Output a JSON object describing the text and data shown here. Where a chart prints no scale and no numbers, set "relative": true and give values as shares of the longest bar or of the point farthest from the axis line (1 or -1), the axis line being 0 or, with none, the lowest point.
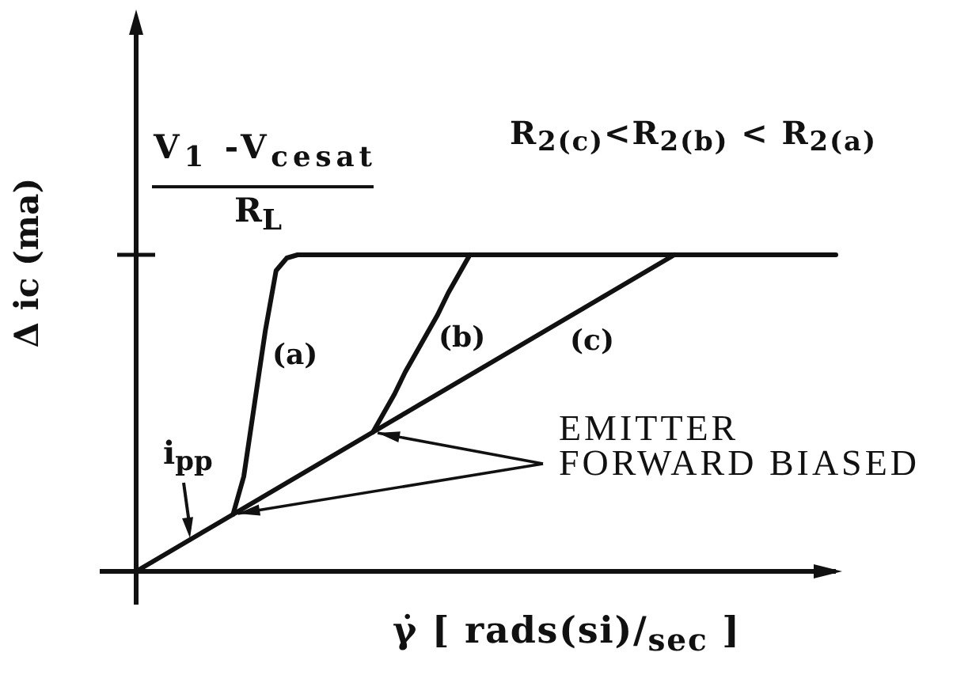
{
  "chart_data": {
    "type": "line",
    "relative": true,
    "xlabel": "γ̇ [ rads(si)/$_{sec}$ ]",
    "ylabel": "Δ ic (ma)",
    "categories": [
      null,
      null,
      null,
      null,
      null,
      null,
      null,
      null,
      null,
      null,
      null,
      null,
      null,
      null,
      null,
      null,
      null,
      null,
      null,
      null,
      null,
      null,
      null,
      null,
      null,
      null,
      null,
      null,
      null,
      null,
      null,
      null,
      null,
      null,
      null,
      null,
      null,
      null,
      null,
      null,
      null,
      null,
      null,
      null,
      null,
      null,
      null,
      null,
      null,
      null,
      null,
      null,
      null,
      null,
      null,
      null,
      null,
      null,
      null,
      null,
      null,
      null,
      null,
      null,
      null,
      null
    ],
    "series": [
      {
        "name": "(a)",
        "color": "#111111",
        "values": [
          null,
          null,
          null,
          null,
          null,
          null,
          null,
          null,
          null,
          0.18,
          0.3,
          0.53,
          0.76,
          0.95,
          0.99,
          1,
          1,
          1,
          1,
          1,
          1,
          1,
          1,
          1,
          1,
          1,
          1,
          1,
          1,
          1,
          1,
          1,
          1,
          1,
          1,
          1,
          1,
          1,
          1,
          1,
          1,
          1,
          1,
          1,
          1,
          1,
          1,
          1,
          1,
          1,
          1,
          1,
          1,
          1,
          1,
          1,
          1,
          1,
          1,
          1,
          1,
          1,
          1,
          1,
          1,
          1
        ]
      },
      {
        "name": "(b)",
        "color": "#111111",
        "values": [
          null,
          null,
          null,
          null,
          null,
          null,
          null,
          null,
          null,
          null,
          null,
          null,
          null,
          null,
          null,
          null,
          null,
          null,
          null,
          null,
          null,
          null,
          0.44,
          0.5,
          0.56,
          0.63,
          0.69,
          0.75,
          0.81,
          0.88,
          0.94,
          1,
          null,
          null,
          null,
          null,
          null,
          null,
          null,
          null,
          null,
          null,
          null,
          null,
          null,
          null,
          null,
          null,
          null,
          null,
          null,
          null,
          null,
          null,
          null,
          null,
          null,
          null,
          null,
          null,
          null,
          null,
          null,
          null,
          null,
          null
        ]
      },
      {
        "name": "(c)",
        "color": "#111111",
        "values": [
          0,
          0.02,
          0.04,
          0.06,
          0.08,
          0.1,
          0.12,
          0.14,
          0.16,
          0.18,
          0.2,
          0.22,
          0.24,
          0.26,
          0.28,
          0.3,
          0.32,
          0.34,
          0.36,
          0.38,
          0.4,
          0.42,
          0.44,
          0.46,
          0.48,
          0.5,
          0.52,
          0.54,
          0.56,
          0.58,
          0.6,
          0.62,
          0.64,
          0.66,
          0.68,
          0.7,
          0.72,
          0.74,
          0.76,
          0.78,
          0.8,
          0.82,
          0.84,
          0.86,
          0.88,
          0.9,
          0.92,
          0.94,
          0.96,
          0.98,
          1,
          null,
          null,
          null,
          null,
          null,
          null,
          null,
          null,
          null,
          null,
          null,
          null,
          null,
          null,
          null
        ]
      }
    ],
    "annotations": [
      "V$_{1}$ -V$_{cesat}$",
      "R$_{L}$",
      "R$_{2(c)}$<R$_{2(b)}$ < R$_{2(a)}$",
      "i$_{pp}$",
      "EMITTER FORWARD BIASED"
    ]
  }
}
